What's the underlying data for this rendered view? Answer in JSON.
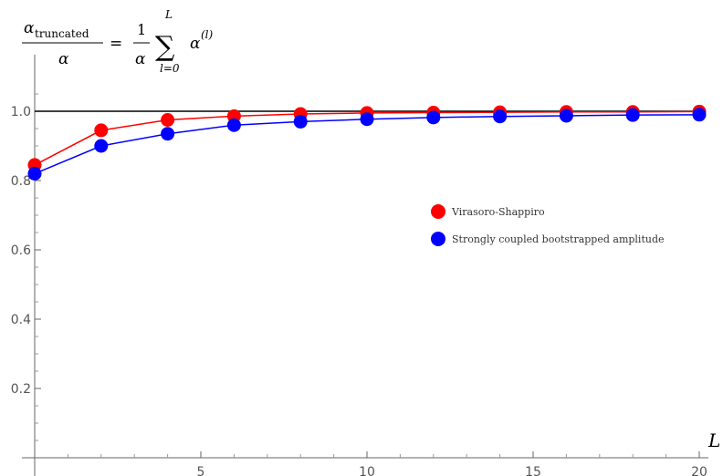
{
  "chart_data": {
    "type": "line",
    "title": "",
    "ylabel_formula": {
      "numerator": "α",
      "numerator_sub": "truncated",
      "denominator": "α",
      "equals": "=",
      "frac_num": "1",
      "frac_den": "α",
      "sum_symbol": "∑",
      "sum_upper": "L",
      "sum_lower": "l=0",
      "term": "α",
      "term_sup": "(l)"
    },
    "xlabel": "L",
    "xlim": [
      0,
      20
    ],
    "ylim": [
      0,
      1.1
    ],
    "x_ticks": [
      5,
      10,
      15,
      20
    ],
    "y_ticks": [
      "0.2",
      "0.4",
      "0.6",
      "0.8",
      "1.0"
    ],
    "reference_line": {
      "y": 1.0,
      "color": "#000000"
    },
    "x": [
      0,
      2,
      4,
      6,
      8,
      10,
      12,
      14,
      16,
      18,
      20
    ],
    "series": [
      {
        "name": "Virasoro-Shappiro",
        "color": "#ff0000",
        "values": [
          0.845,
          0.945,
          0.975,
          0.986,
          0.992,
          0.995,
          0.996,
          0.997,
          0.998,
          0.998,
          0.999
        ]
      },
      {
        "name": "Strongly coupled bootstrapped amplitude",
        "color": "#0000ff",
        "values": [
          0.82,
          0.9,
          0.935,
          0.96,
          0.97,
          0.977,
          0.982,
          0.985,
          0.987,
          0.989,
          0.99
        ]
      }
    ],
    "legend_position": "right-middle",
    "grid": false
  }
}
